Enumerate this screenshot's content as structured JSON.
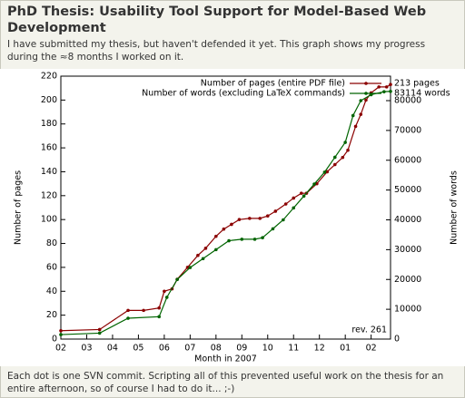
{
  "page": {
    "title": "PhD Thesis: Usability Tool Support for Model-Based Web Development",
    "intro": "I have submitted my thesis, but haven't defended it yet. This graph shows my progress during the ≈8 months I worked on it.",
    "footer": "Each dot is one SVN commit. Scripting all of this prevented useful work on the thesis for an entire afternoon, so of course I had to do it... ;-)"
  },
  "chart_data": {
    "type": "line",
    "xlabel": "Month in 2007",
    "ylabel": "Number of pages",
    "y2label": "Number of words",
    "xlim": [
      0,
      12.75
    ],
    "xticks": [
      {
        "value": 0,
        "label": "02"
      },
      {
        "value": 1,
        "label": "03"
      },
      {
        "value": 2,
        "label": "04"
      },
      {
        "value": 3,
        "label": "05"
      },
      {
        "value": 4,
        "label": "06"
      },
      {
        "value": 5,
        "label": "07"
      },
      {
        "value": 6,
        "label": "08"
      },
      {
        "value": 7,
        "label": "09"
      },
      {
        "value": 8,
        "label": "10"
      },
      {
        "value": 9,
        "label": "11"
      },
      {
        "value": 10,
        "label": "12"
      },
      {
        "value": 11,
        "label": "01"
      },
      {
        "value": 12,
        "label": "02"
      }
    ],
    "ylim": [
      0,
      220
    ],
    "yticks": [
      0,
      20,
      40,
      60,
      80,
      100,
      120,
      140,
      160,
      180,
      200,
      220
    ],
    "y2lim": [
      0,
      88213
    ],
    "y2ticks": [
      0,
      10000,
      20000,
      30000,
      40000,
      50000,
      60000,
      70000,
      80000
    ],
    "legend": "top-right",
    "grid": false,
    "annotations": [
      "213 pages",
      "83114 words",
      "rev. 261"
    ],
    "series": [
      {
        "name": "Number of pages (entire PDF file)",
        "color": "#8b0000",
        "x": [
          0,
          1.5,
          2.6,
          3.2,
          3.8,
          4.0,
          4.3,
          4.5,
          4.9,
          5.3,
          5.6,
          6.0,
          6.3,
          6.6,
          6.9,
          7.3,
          7.7,
          8.0,
          8.3,
          8.7,
          9.0,
          9.3,
          9.5,
          9.9,
          10.3,
          10.6,
          10.9,
          11.1,
          11.4,
          11.6,
          11.8,
          12.0,
          12.3,
          12.6,
          12.75
        ],
        "values": [
          7,
          8,
          24,
          24,
          26,
          40,
          42,
          50,
          60,
          70,
          76,
          86,
          92,
          96,
          100,
          101,
          101,
          103,
          107,
          113,
          118,
          122,
          122,
          130,
          140,
          146,
          152,
          158,
          178,
          188,
          200,
          206,
          211,
          211,
          213
        ]
      },
      {
        "name": "Number of words (excluding LaTeX commands)",
        "color": "#006400",
        "axis": "y2",
        "x": [
          0,
          1.5,
          2.6,
          3.8,
          4.1,
          4.5,
          5.0,
          5.5,
          6.0,
          6.5,
          7.0,
          7.5,
          7.8,
          8.2,
          8.6,
          9.0,
          9.4,
          9.8,
          10.2,
          10.6,
          11.0,
          11.3,
          11.6,
          12.0,
          12.5,
          12.75
        ],
        "values": [
          1500,
          2000,
          7000,
          7500,
          14000,
          20000,
          24000,
          27000,
          30000,
          33000,
          33500,
          33500,
          34000,
          37000,
          40000,
          44000,
          48000,
          52000,
          56000,
          61000,
          66000,
          75000,
          80000,
          82000,
          83000,
          83114
        ]
      }
    ]
  }
}
